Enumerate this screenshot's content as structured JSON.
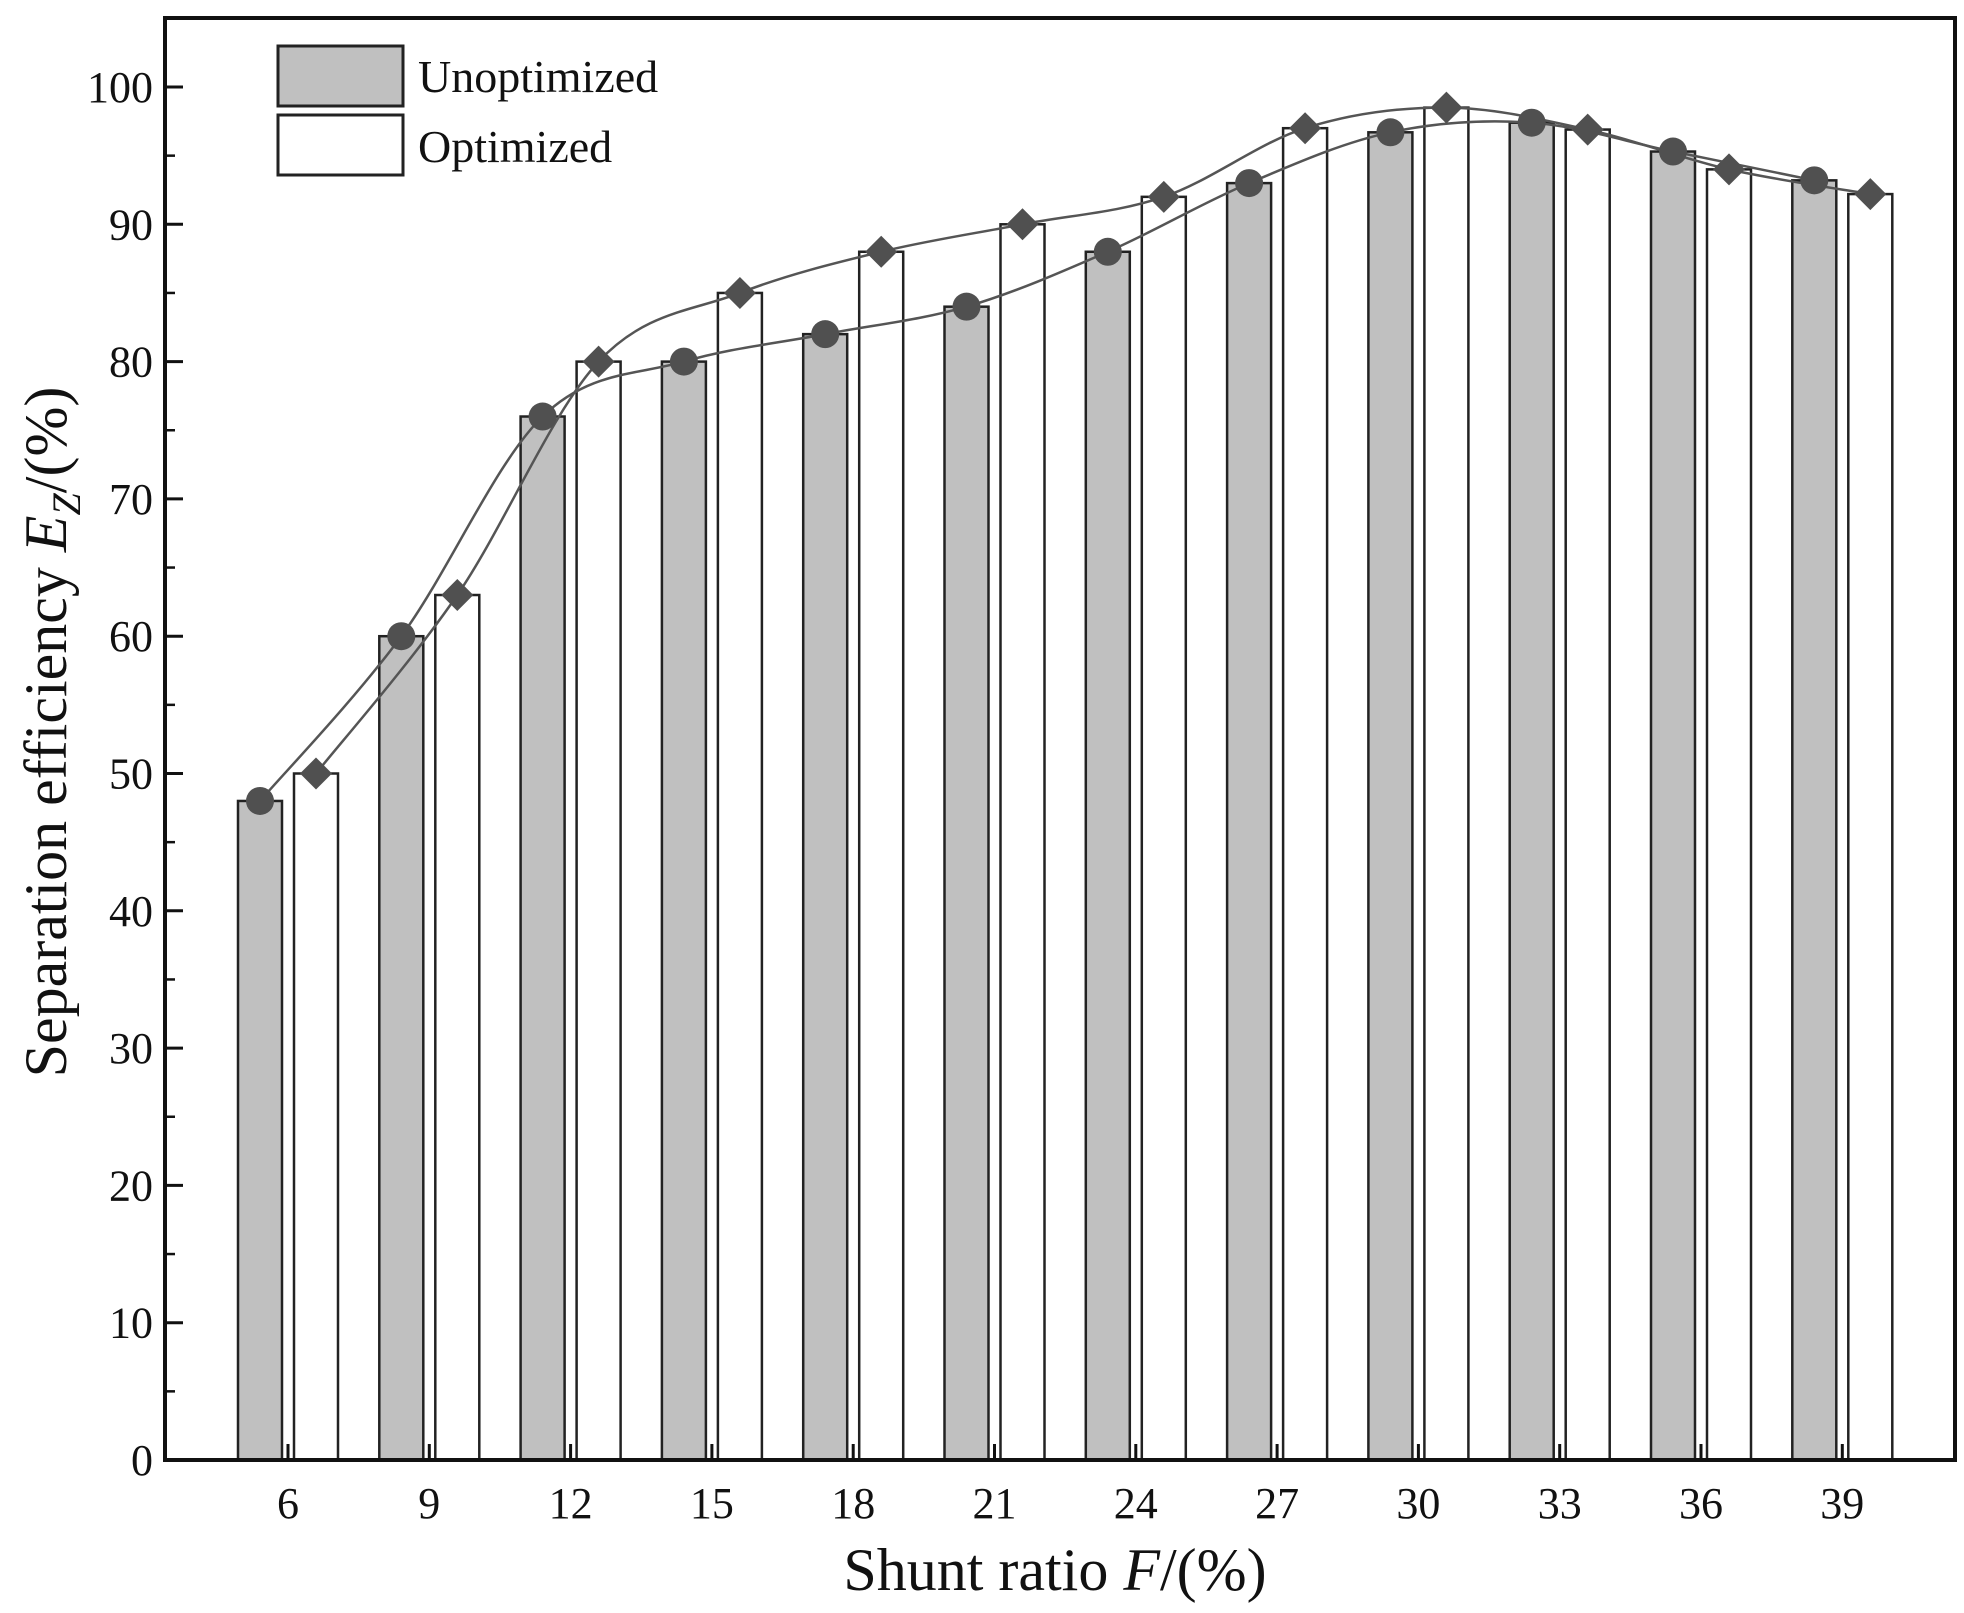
{
  "chart_data": {
    "type": "bar",
    "title": "",
    "categories": [
      "6",
      "9",
      "12",
      "15",
      "18",
      "21",
      "24",
      "27",
      "30",
      "33",
      "36",
      "39"
    ],
    "series": [
      {
        "name": "Unoptimized",
        "values": [
          48,
          60,
          76,
          80,
          82,
          84,
          88,
          93,
          96.7,
          97.4,
          95.3,
          93.2
        ],
        "fill": "#c0c0c0",
        "marker": "circle"
      },
      {
        "name": "Optimized",
        "values": [
          50,
          63,
          80,
          85,
          88,
          90,
          92,
          97,
          98.5,
          96.9,
          94,
          92.2
        ],
        "fill": "#ffffff",
        "marker": "diamond"
      }
    ],
    "xlabel": {
      "main": "Shunt ratio ",
      "var": "F",
      "unit": "/(%)"
    },
    "ylabel": {
      "main": "Separation efficiency ",
      "var": "E",
      "sub": "Z",
      "unit": "/(%)"
    },
    "ylim": [
      0,
      100
    ],
    "yticks": [
      0,
      10,
      20,
      30,
      40,
      50,
      60,
      70,
      80,
      90,
      100
    ],
    "grid": false,
    "legend_position": "top-left",
    "colors": {
      "axis": "#111111",
      "bar_edge": "#222222",
      "marker": "#505050",
      "line": "#555555"
    }
  }
}
